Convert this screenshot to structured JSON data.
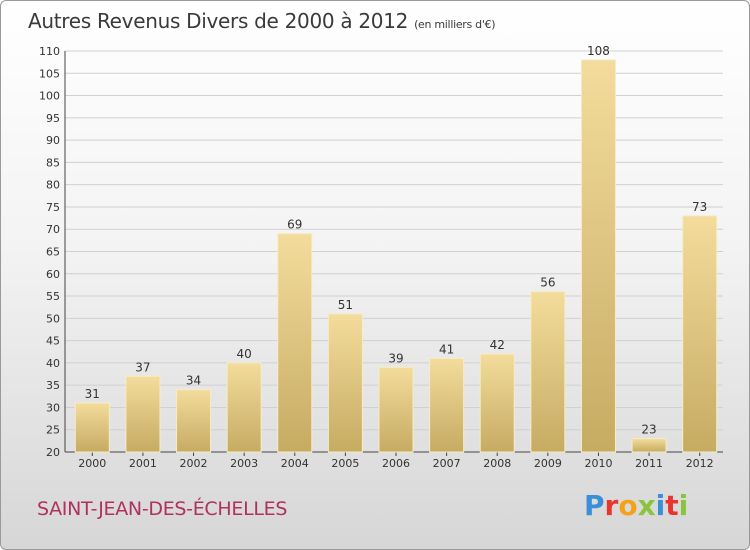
{
  "title": "Autres Revenus Divers de 2000 à 2012",
  "unit_note": "(en milliers d'€)",
  "commune": "SAINT-JEAN-DES-ÉCHELLES",
  "logo": {
    "text": "Proxiti",
    "letters": [
      {
        "ch": "P",
        "color": "#3a8fd8"
      },
      {
        "ch": "r",
        "color": "#e8352e"
      },
      {
        "ch": "o",
        "color": "#f5a21a"
      },
      {
        "ch": "x",
        "color": "#8ac43f"
      },
      {
        "ch": "i",
        "color": "#3a8fd8"
      },
      {
        "ch": "t",
        "color": "#e8352e"
      },
      {
        "ch": "i",
        "color": "#8ac43f"
      }
    ]
  },
  "colors": {
    "bar_top": "#f3dc9c",
    "bar_bottom": "#c6ab62",
    "grid": "#d0d0d0",
    "commune": "#b0315f"
  },
  "chart_data": {
    "type": "bar",
    "categories": [
      "2000",
      "2001",
      "2002",
      "2003",
      "2004",
      "2005",
      "2006",
      "2007",
      "2008",
      "2009",
      "2010",
      "2011",
      "2012"
    ],
    "values": [
      31,
      37,
      34,
      40,
      69,
      51,
      39,
      41,
      42,
      56,
      108,
      23,
      73
    ],
    "ylim": [
      20,
      110
    ],
    "yticks": [
      20,
      25,
      30,
      35,
      40,
      45,
      50,
      55,
      60,
      65,
      70,
      75,
      80,
      85,
      90,
      95,
      100,
      105,
      110
    ],
    "grid": true,
    "xlabel": "",
    "ylabel": ""
  }
}
